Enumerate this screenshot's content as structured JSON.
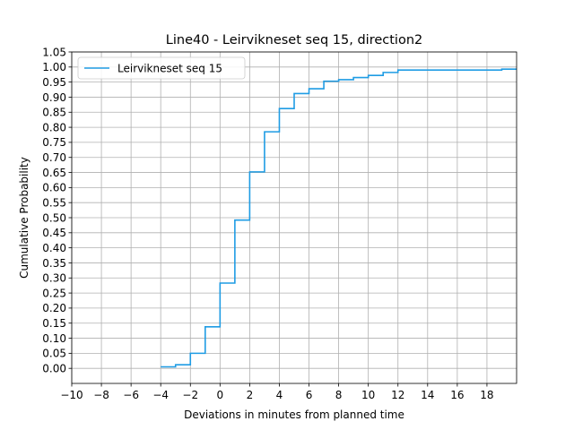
{
  "chart_data": {
    "type": "line",
    "step": true,
    "title": "Line40 - Leirvikneset seq 15, direction2",
    "xlabel": "Deviations in minutes from planned time",
    "ylabel": "Cumulative Probability",
    "xlim": [
      -10,
      20
    ],
    "ylim": [
      -0.05,
      1.05
    ],
    "xticks": [
      -10,
      -8,
      -6,
      -4,
      -2,
      0,
      2,
      4,
      6,
      8,
      10,
      12,
      14,
      16,
      18
    ],
    "xtick_labels": [
      "−10",
      "−8",
      "−6",
      "−4",
      "−2",
      "0",
      "2",
      "4",
      "6",
      "8",
      "10",
      "12",
      "14",
      "16",
      "18"
    ],
    "yticks": [
      0.0,
      0.05,
      0.1,
      0.15,
      0.2,
      0.25,
      0.3,
      0.35,
      0.4,
      0.45,
      0.5,
      0.55,
      0.6,
      0.65,
      0.7,
      0.75,
      0.8,
      0.85,
      0.9,
      0.95,
      1.0,
      1.05
    ],
    "ytick_labels": [
      "0.00",
      "0.05",
      "0.10",
      "0.15",
      "0.20",
      "0.25",
      "0.30",
      "0.35",
      "0.40",
      "0.45",
      "0.50",
      "0.55",
      "0.60",
      "0.65",
      "0.70",
      "0.75",
      "0.80",
      "0.85",
      "0.90",
      "0.95",
      "1.00",
      "1.05"
    ],
    "grid": true,
    "legend_position": "upper-left",
    "series": [
      {
        "name": "Leirvikneset seq 15",
        "color": "#1f9ce4",
        "x": [
          -4,
          -3,
          -2,
          -1,
          0,
          1,
          2,
          3,
          4,
          5,
          6,
          7,
          8,
          9,
          10,
          11,
          12,
          19,
          20
        ],
        "y": [
          0.005,
          0.012,
          0.05,
          0.138,
          0.283,
          0.492,
          0.652,
          0.785,
          0.862,
          0.912,
          0.928,
          0.953,
          0.958,
          0.965,
          0.972,
          0.982,
          0.99,
          0.993,
          0.993
        ]
      }
    ]
  }
}
